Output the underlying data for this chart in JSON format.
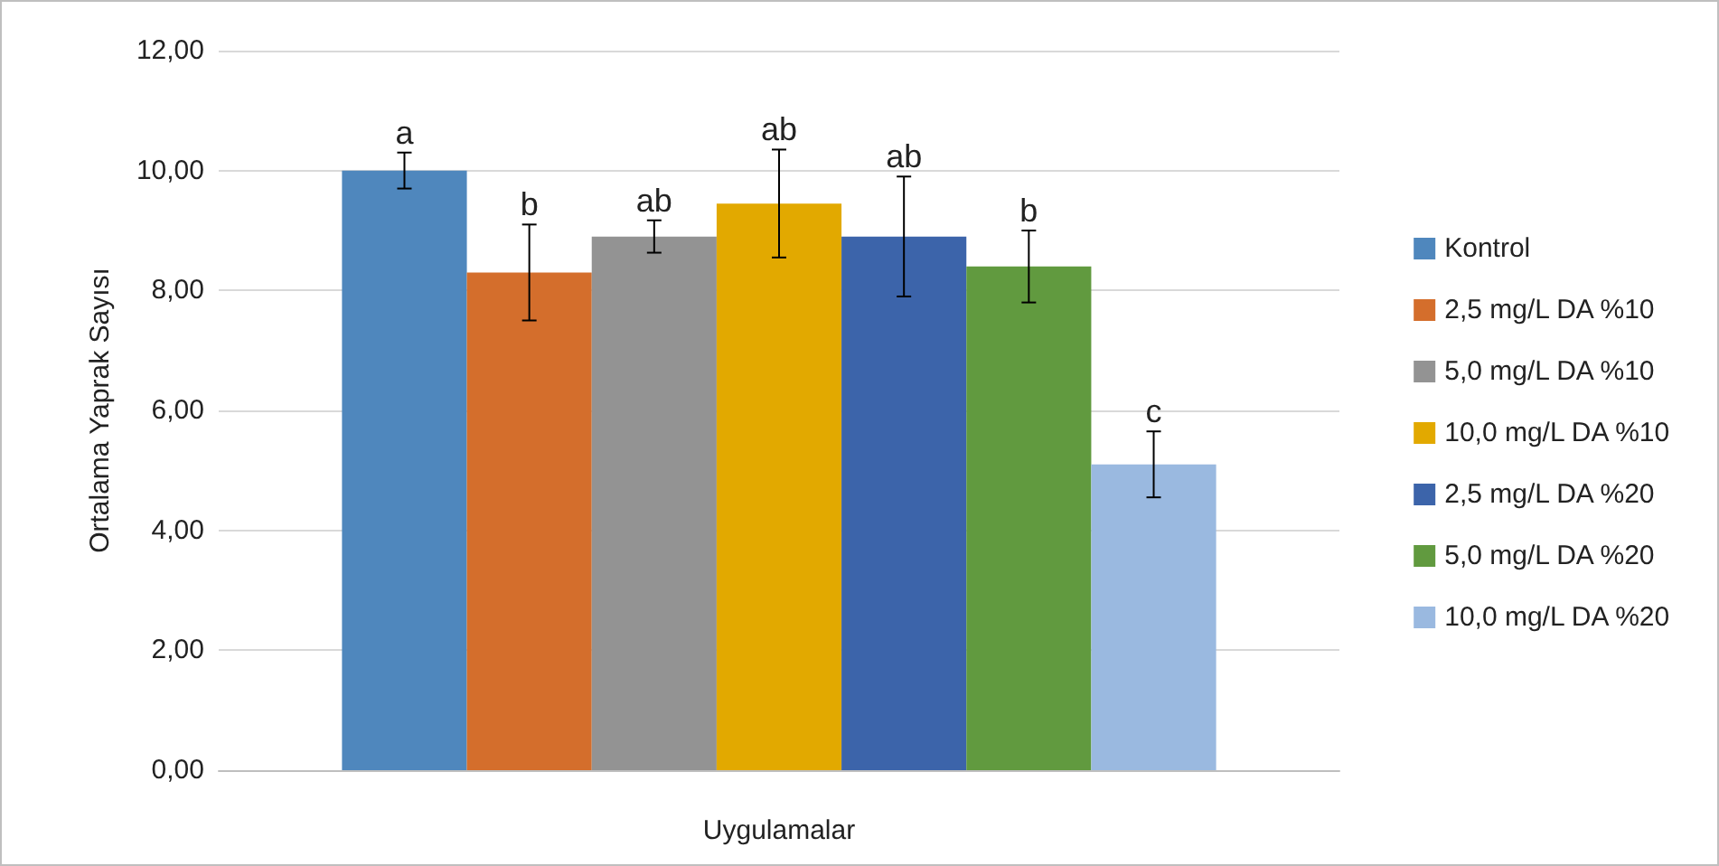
{
  "chart_data": {
    "type": "bar",
    "xlabel": "Uygulamalar",
    "ylabel": "Ortalama Yaprak Sayısı",
    "categories": [
      null
    ],
    "series": [
      {
        "name": "Kontrol",
        "color": "#4f87bd",
        "values": [
          10.0
        ],
        "errors": [
          0.3
        ],
        "value_labels": [
          "a"
        ]
      },
      {
        "name": "2,5 mg/L DA %10",
        "color": "#d46e2c",
        "values": [
          8.3
        ],
        "errors": [
          0.8
        ],
        "value_labels": [
          "b"
        ]
      },
      {
        "name": "5,0 mg/L DA %10",
        "color": "#939393",
        "values": [
          8.9
        ],
        "errors": [
          0.27
        ],
        "value_labels": [
          "ab"
        ]
      },
      {
        "name": "10,0 mg/L DA %10",
        "color": "#e2a900",
        "values": [
          9.45
        ],
        "errors": [
          0.9
        ],
        "value_labels": [
          "ab"
        ]
      },
      {
        "name": "2,5 mg/L DA %20",
        "color": "#3c64aa",
        "values": [
          8.9
        ],
        "errors": [
          1.0
        ],
        "value_labels": [
          "ab"
        ]
      },
      {
        "name": "5,0 mg/L DA %20",
        "color": "#619a3f",
        "values": [
          8.4
        ],
        "errors": [
          0.6
        ],
        "value_labels": [
          "b"
        ]
      },
      {
        "name": "10,0 mg/L DA %20",
        "color": "#9ab9e0",
        "values": [
          5.1
        ],
        "errors": [
          0.55
        ],
        "value_labels": [
          "c"
        ]
      }
    ],
    "ylim": [
      0,
      12
    ],
    "yticks": [
      {
        "value": 0,
        "label": "0,00"
      },
      {
        "value": 2,
        "label": "2,00"
      },
      {
        "value": 4,
        "label": "4,00"
      },
      {
        "value": 6,
        "label": "6,00"
      },
      {
        "value": 8,
        "label": "8,00"
      },
      {
        "value": 10,
        "label": "10,00"
      },
      {
        "value": 12,
        "label": "12,00"
      }
    ],
    "grid": "y",
    "legend": "right"
  }
}
